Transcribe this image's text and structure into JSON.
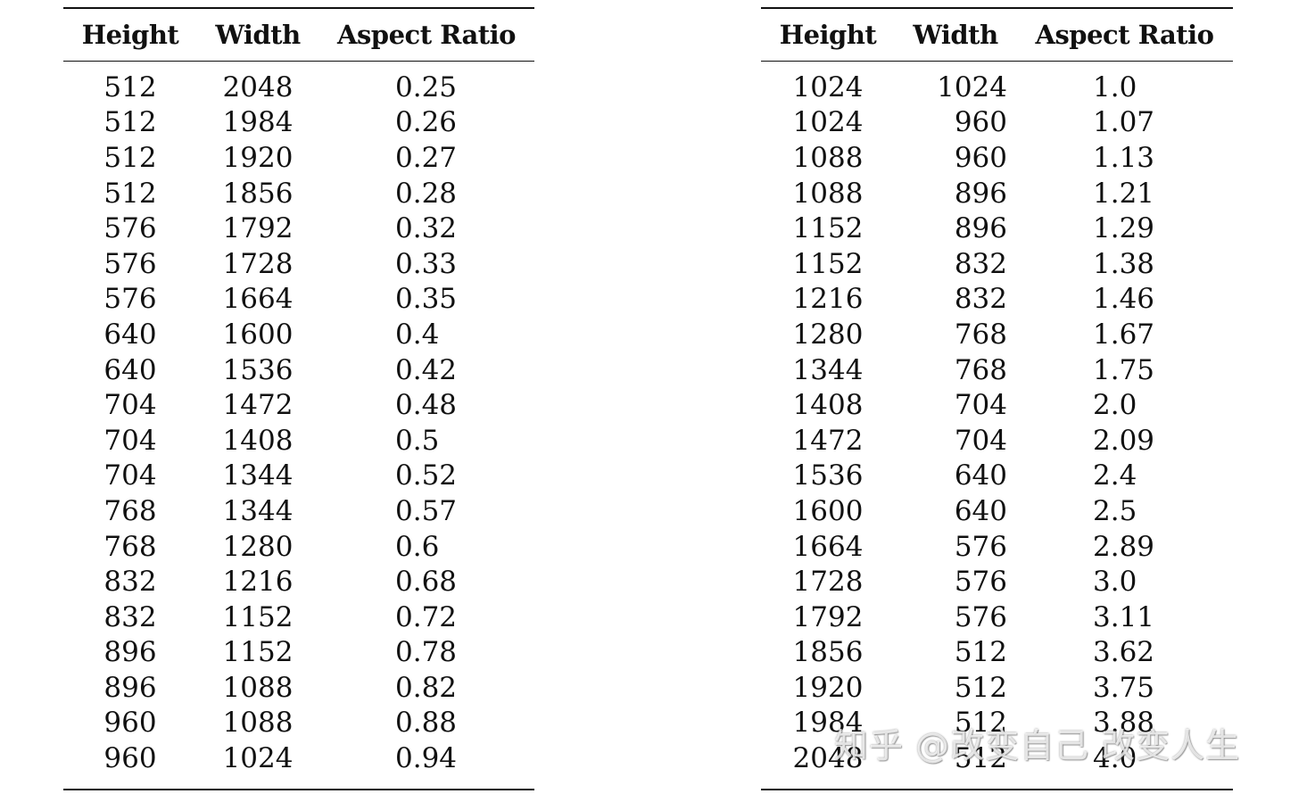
{
  "tables": [
    {
      "headers": [
        "Height",
        "Width",
        "Aspect Ratio"
      ],
      "rows": [
        [
          "512",
          "2048",
          "0.25"
        ],
        [
          "512",
          "1984",
          "0.26"
        ],
        [
          "512",
          "1920",
          "0.27"
        ],
        [
          "512",
          "1856",
          "0.28"
        ],
        [
          "576",
          "1792",
          "0.32"
        ],
        [
          "576",
          "1728",
          "0.33"
        ],
        [
          "576",
          "1664",
          "0.35"
        ],
        [
          "640",
          "1600",
          "0.4"
        ],
        [
          "640",
          "1536",
          "0.42"
        ],
        [
          "704",
          "1472",
          "0.48"
        ],
        [
          "704",
          "1408",
          "0.5"
        ],
        [
          "704",
          "1344",
          "0.52"
        ],
        [
          "768",
          "1344",
          "0.57"
        ],
        [
          "768",
          "1280",
          "0.6"
        ],
        [
          "832",
          "1216",
          "0.68"
        ],
        [
          "832",
          "1152",
          "0.72"
        ],
        [
          "896",
          "1152",
          "0.78"
        ],
        [
          "896",
          "1088",
          "0.82"
        ],
        [
          "960",
          "1088",
          "0.88"
        ],
        [
          "960",
          "1024",
          "0.94"
        ]
      ]
    },
    {
      "headers": [
        "Height",
        "Width",
        "Aspect Ratio"
      ],
      "rows": [
        [
          "1024",
          "1024",
          "1.0"
        ],
        [
          "1024",
          "960",
          "1.07"
        ],
        [
          "1088",
          "960",
          "1.13"
        ],
        [
          "1088",
          "896",
          "1.21"
        ],
        [
          "1152",
          "896",
          "1.29"
        ],
        [
          "1152",
          "832",
          "1.38"
        ],
        [
          "1216",
          "832",
          "1.46"
        ],
        [
          "1280",
          "768",
          "1.67"
        ],
        [
          "1344",
          "768",
          "1.75"
        ],
        [
          "1408",
          "704",
          "2.0"
        ],
        [
          "1472",
          "704",
          "2.09"
        ],
        [
          "1536",
          "640",
          "2.4"
        ],
        [
          "1600",
          "640",
          "2.5"
        ],
        [
          "1664",
          "576",
          "2.89"
        ],
        [
          "1728",
          "576",
          "3.0"
        ],
        [
          "1792",
          "576",
          "3.11"
        ],
        [
          "1856",
          "512",
          "3.62"
        ],
        [
          "1920",
          "512",
          "3.75"
        ],
        [
          "1984",
          "512",
          "3.88"
        ],
        [
          "2048",
          "512",
          "4.0"
        ]
      ]
    }
  ],
  "watermark": "知乎 @改变自己 改变人生"
}
